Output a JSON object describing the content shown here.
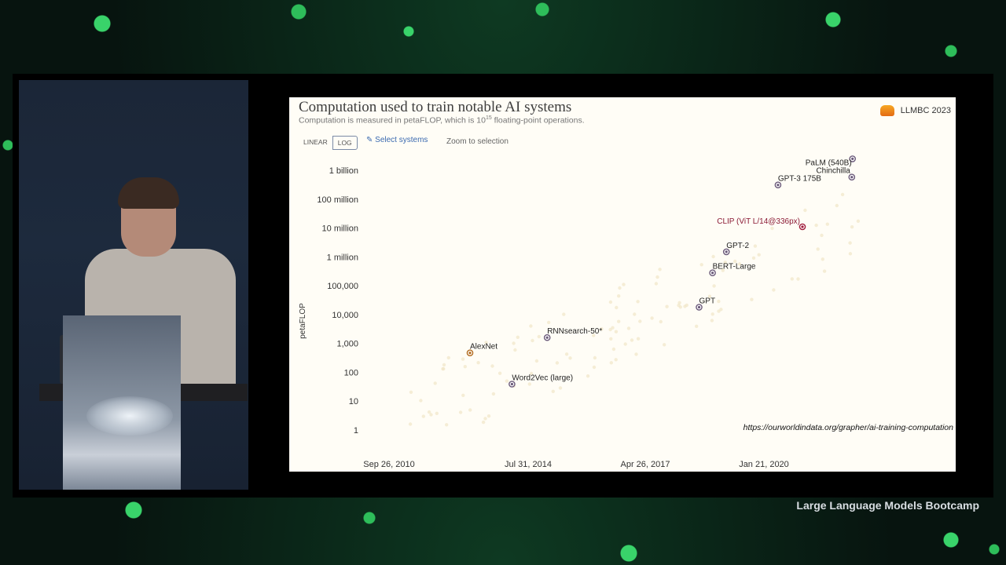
{
  "slide": {
    "title": "Computation used to train notable AI systems",
    "subtitle_pre": "Computation is measured in petaFLOP, which is 10",
    "subtitle_sup": "15",
    "subtitle_post": " floating-point operations.",
    "badge_label": "LLMBC 2023",
    "toggle_linear": "LINEAR",
    "toggle_log": "LOG",
    "select_systems_label": "Select systems",
    "zoom_label": "Zoom to selection",
    "url": "https://ourworldindata.org/grapher/ai-training-computation"
  },
  "footer": {
    "caption": "Large Language Models Bootcamp"
  },
  "colors": {
    "point_default": "#6b5a7a",
    "point_alexnet": "#b36b1e",
    "point_clip": "#a01c3a",
    "label_clip": "#8b1a35"
  },
  "chart_data": {
    "type": "scatter",
    "title": "Computation used to train notable AI systems",
    "ylabel": "petaFLOP",
    "yscale": "log",
    "ylim": [
      1,
      1000000000
    ],
    "y_ticks": [
      {
        "value": 1,
        "label": "1"
      },
      {
        "value": 10,
        "label": "10"
      },
      {
        "value": 100,
        "label": "100"
      },
      {
        "value": 1000,
        "label": "1,000"
      },
      {
        "value": 10000,
        "label": "10,000"
      },
      {
        "value": 100000,
        "label": "100,000"
      },
      {
        "value": 1000000,
        "label": "1 million"
      },
      {
        "value": 10000000,
        "label": "10 million"
      },
      {
        "value": 100000000,
        "label": "100 million"
      },
      {
        "value": 1000000000,
        "label": "1 billion"
      }
    ],
    "x_ticks": [
      "Sep 26, 2010",
      "Jul 31, 2014",
      "Apr 26, 2017",
      "Jan 21, 2020"
    ],
    "points": [
      {
        "label": "AlexNet",
        "date": "2012-09-30",
        "y": 470,
        "color_key": "point_alexnet"
      },
      {
        "label": "Word2Vec (large)",
        "date": "2013-10-16",
        "y": 39,
        "color_key": "point_default"
      },
      {
        "label": "RNNsearch-50*",
        "date": "2014-09-01",
        "y": 1600,
        "color_key": "point_default"
      },
      {
        "label": "GPT",
        "date": "2018-06-11",
        "y": 18000,
        "color_key": "point_default"
      },
      {
        "label": "BERT-Large",
        "date": "2018-10-11",
        "y": 280000,
        "color_key": "point_default"
      },
      {
        "label": "GPT-2",
        "date": "2019-02-14",
        "y": 1500000,
        "color_key": "point_default"
      },
      {
        "label": "CLIP (ViT L/14@336px)",
        "date": "2021-01-05",
        "y": 11000000,
        "color_key": "point_clip"
      },
      {
        "label": "GPT-3 175B",
        "date": "2020-05-28",
        "y": 310000000,
        "color_key": "point_default"
      },
      {
        "label": "PaLM (540B)",
        "date": "2022-04-04",
        "y": 2500000000,
        "color_key": "point_default"
      },
      {
        "label": "Chinchilla",
        "date": "2022-03-29",
        "y": 580000000,
        "color_key": "point_default"
      }
    ]
  }
}
